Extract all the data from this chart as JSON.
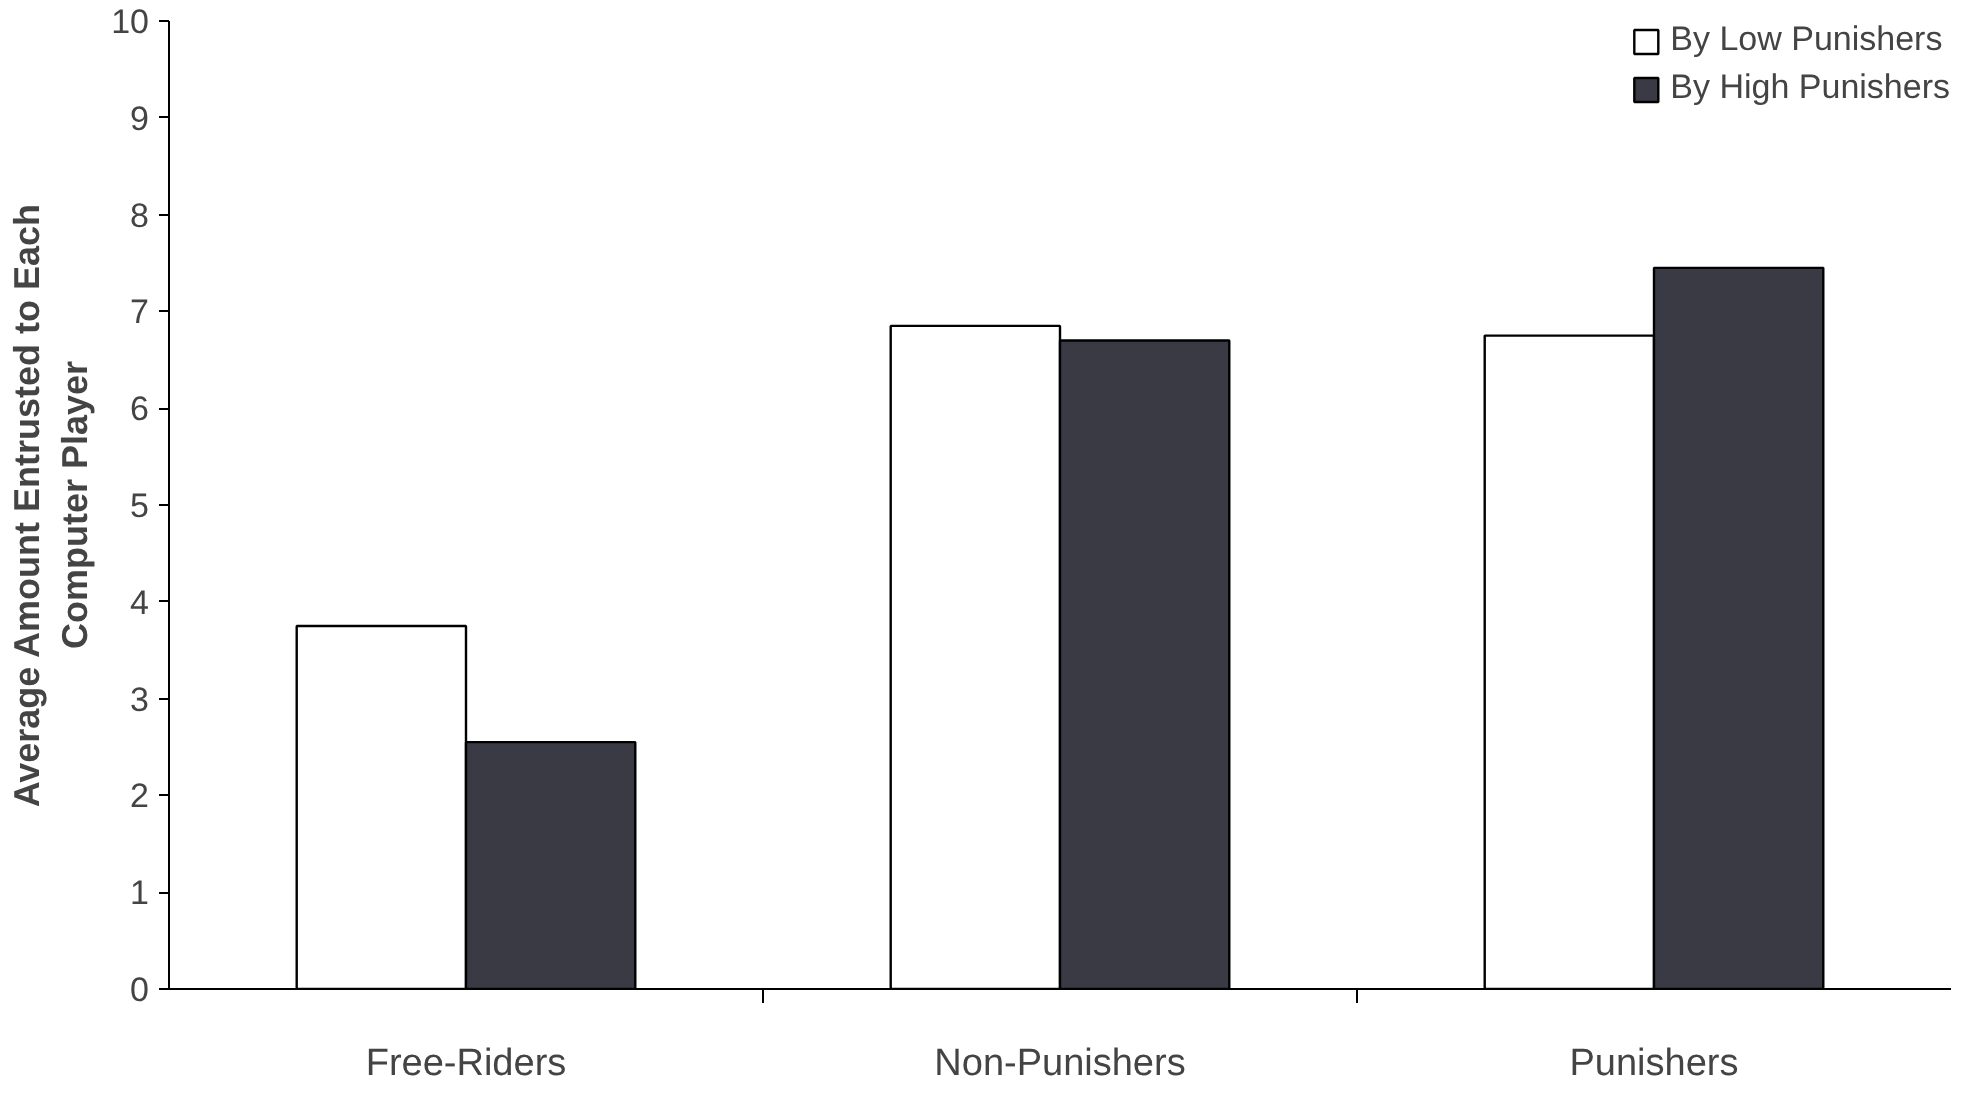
{
  "chart_data": {
    "type": "bar",
    "ylabel": "Average Amount Entrusted to Each\nComputer Player",
    "categories": [
      "Free-Riders",
      "Non-Punishers",
      "Punishers"
    ],
    "series": [
      {
        "name": "By Low Punishers",
        "color": "#ffffff",
        "values": [
          3.75,
          6.85,
          6.75
        ]
      },
      {
        "name": "By High Punishers",
        "color": "#3a3a44",
        "values": [
          2.55,
          6.7,
          7.45
        ]
      }
    ],
    "ylim": [
      0,
      10
    ],
    "yticks": [
      0,
      1,
      2,
      3,
      4,
      5,
      6,
      7,
      8,
      9,
      10
    ],
    "grid": false,
    "legend": "top right"
  }
}
